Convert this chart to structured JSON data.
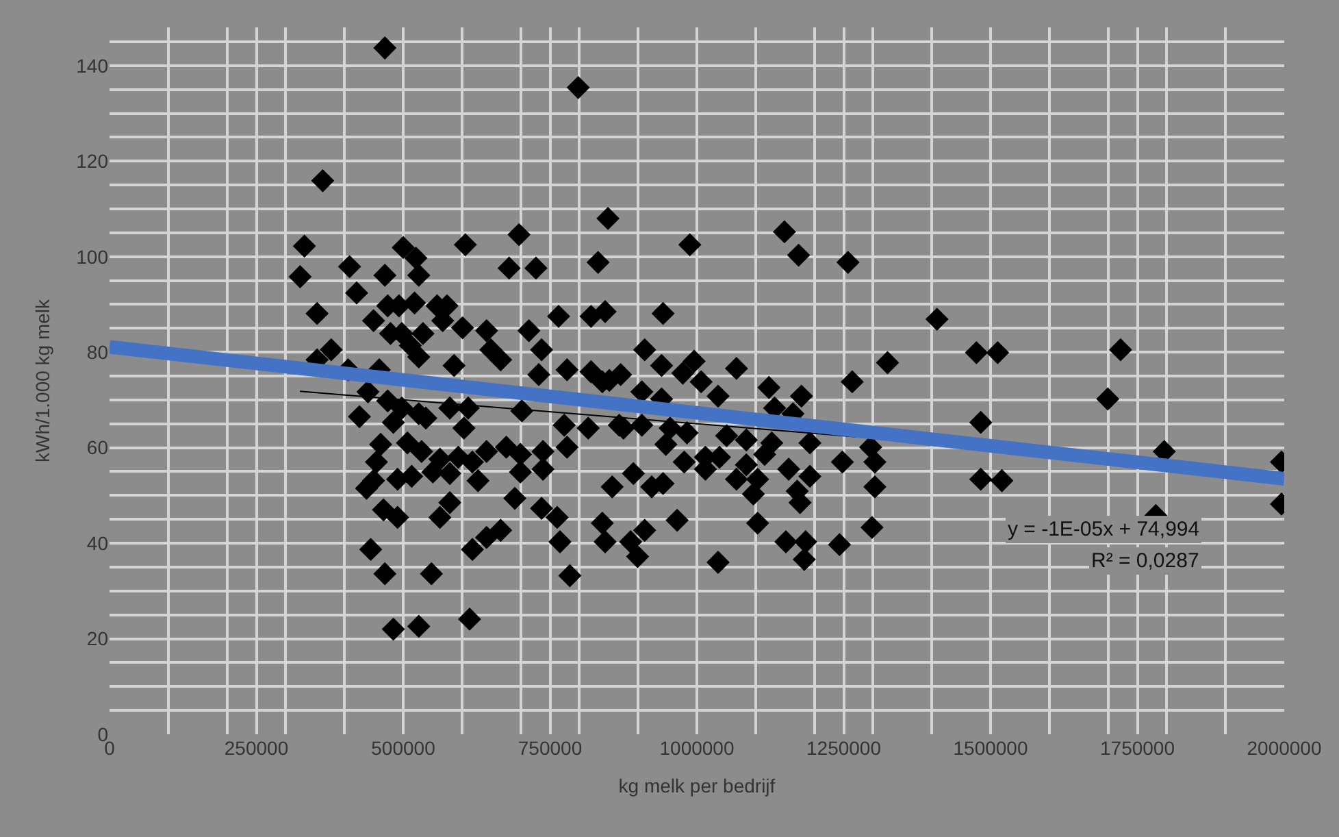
{
  "chart_data": {
    "type": "scatter",
    "xlabel": "kg melk per bedrijf",
    "ylabel": "kWh/1.000 kg melk",
    "xlim": [
      0,
      2000000
    ],
    "xticks": [
      0,
      250000,
      500000,
      750000,
      1000000,
      1250000,
      1500000,
      1750000,
      2000000
    ],
    "ylim": [
      0,
      148
    ],
    "yticks": [
      0,
      20,
      40,
      60,
      80,
      100,
      120,
      140
    ],
    "grid": true,
    "annotations": [
      "y = -1E-05x + 74,994",
      "R² = 0,0287"
    ],
    "series": [
      {
        "type": "line",
        "color": "#000000",
        "x": [
          324000,
          1300000
        ],
        "values": [
          71.8,
          62.0
        ],
        "marker": "none"
      },
      {
        "color": "#000000",
        "marker": "diamond",
        "x": [
          468800,
          798000,
          363000,
          848600,
          331800,
          605800,
          697200,
          324500,
          408700,
          468800,
          500000,
          521700,
          526500,
          680300,
          726000,
          831800,
          420700,
          353400,
          473600,
          492800,
          519300,
          557700,
          574600,
          449500,
          567300,
          601000,
          764500,
          819800,
          843800,
          714000,
          478400,
          497600,
          533700,
          641900,
          735600,
          512100,
          526500,
          649100,
          665900,
          377400,
          353400,
          586600,
          730800,
          778900,
          819800,
          851000,
          406300,
          459200,
          440000,
          473600,
          497600,
          425500,
          483200,
          526500,
          538500,
          579400,
          610600,
          603400,
          702000,
          774100,
          815000,
          867800,
          461600,
          507200,
          531300,
          562500,
          593800,
          617800,
          641900,
          675500,
          699600,
          738000,
          778900,
          454400,
          449500,
          490400,
          514400,
          550500,
          579400,
          627400,
          699600,
          738000,
          437500,
          855800,
          466400,
          490400,
          562500,
          579400,
          690000,
          735600,
          762100,
          839000,
          641900,
          665900,
          617800,
          766900,
          843800,
          444700,
          468800,
          548100,
          783700,
          613000,
          483200,
          526500,
          988000,
          1149100,
          1173200,
          1257300,
          1408800,
          942400,
          911100,
          939900,
          995300,
          976000,
          1007300,
          1036100,
          1067400,
          1122700,
          1178000,
          1264500,
          1324600,
          870200,
          839000,
          906300,
          939900,
          1132300,
          1163600,
          875000,
          906300,
          954400,
          983200,
          1050600,
          1084200,
          947200,
          1127500,
          1192400,
          1295800,
          978400,
          1014500,
          1038500,
          1014500,
          1084200,
          1115400,
          1156300,
          1192400,
          1247700,
          1303000,
          891900,
          923100,
          942400,
          1067400,
          1103400,
          1096200,
          1170800,
          1175600,
          1303000,
          911100,
          887100,
          899100,
          966400,
          1103400,
          1151500,
          1185200,
          1182800,
          1242900,
          1298200,
          1036100,
          1476000,
          1512100,
          1721300,
          1699600,
          1483300,
          1483300,
          1519300,
          1795800,
          1781400,
          1995300,
          1995300
        ],
        "values": [
          143.7,
          135.4,
          115.9,
          108.0,
          102.2,
          102.5,
          104.6,
          95.8,
          97.9,
          96.1,
          101.9,
          99.7,
          96.1,
          97.6,
          97.6,
          98.8,
          92.4,
          88.1,
          89.7,
          89.7,
          90.3,
          89.7,
          89.7,
          86.6,
          86.6,
          85.1,
          87.5,
          87.5,
          88.5,
          84.5,
          83.9,
          83.9,
          83.9,
          84.5,
          80.5,
          81.4,
          79.0,
          80.5,
          78.4,
          80.5,
          78.4,
          77.2,
          75.3,
          76.3,
          75.9,
          74.1,
          76.3,
          76.3,
          71.7,
          69.8,
          68.3,
          66.5,
          65.3,
          67.1,
          66.2,
          68.3,
          68.3,
          64.1,
          67.7,
          64.7,
          64.1,
          64.7,
          60.7,
          61.0,
          59.2,
          57.6,
          58.0,
          57.0,
          59.2,
          60.1,
          58.6,
          59.2,
          60.1,
          57.0,
          53.1,
          53.4,
          54.0,
          54.9,
          54.6,
          53.1,
          54.9,
          55.5,
          51.5,
          51.8,
          47.0,
          45.4,
          45.4,
          48.5,
          49.4,
          47.3,
          45.4,
          44.2,
          41.2,
          42.7,
          38.7,
          40.3,
          40.3,
          38.7,
          33.6,
          33.6,
          33.2,
          24.1,
          22.0,
          22.6,
          102.5,
          105.2,
          100.3,
          98.8,
          86.9,
          88.1,
          80.5,
          77.2,
          78.1,
          75.6,
          73.8,
          70.8,
          76.6,
          72.6,
          70.8,
          73.8,
          77.8,
          75.3,
          73.8,
          71.7,
          70.2,
          68.3,
          67.1,
          64.1,
          64.7,
          64.1,
          63.1,
          62.5,
          61.6,
          60.7,
          61.0,
          61.0,
          60.1,
          57.0,
          58.0,
          58.0,
          55.5,
          56.4,
          58.6,
          55.5,
          54.0,
          57.0,
          57.0,
          54.6,
          51.8,
          52.5,
          53.4,
          53.4,
          50.3,
          50.9,
          48.5,
          51.8,
          42.7,
          40.3,
          37.2,
          44.8,
          44.2,
          40.3,
          40.3,
          36.6,
          39.7,
          43.3,
          36.0,
          79.9,
          79.9,
          80.5,
          70.2,
          65.3,
          53.4,
          53.1,
          59.2,
          45.8,
          57.0,
          48.2
        ]
      },
      {
        "type": "line",
        "color": "#4472c4",
        "x": [
          0,
          2000000
        ],
        "values": [
          81.1,
          53.5
        ],
        "marker": "none"
      }
    ]
  }
}
